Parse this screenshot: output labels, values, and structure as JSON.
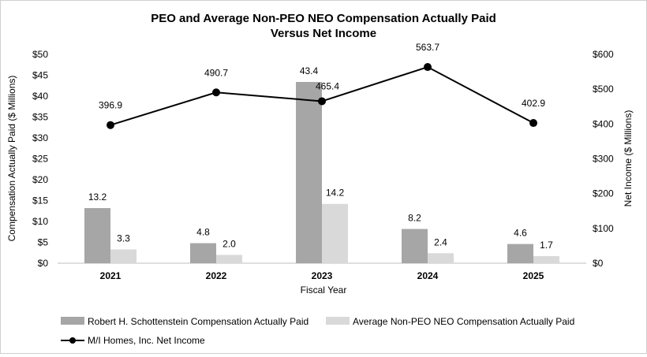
{
  "chart_data": {
    "type": "bar",
    "title": "PEO and Average Non-PEO NEO Compensation Actually Paid",
    "subtitle": "Versus Net Income",
    "xlabel": "Fiscal Year",
    "ylabel": "Compensation Actually Paid ($ Millions)",
    "y2label": "Net Income ($ Millions)",
    "categories": [
      "2021",
      "2022",
      "2023",
      "2024",
      "2025"
    ],
    "ylim": [
      0,
      50
    ],
    "y2lim": [
      0,
      600
    ],
    "yticks": [
      "$0",
      "$5",
      "$10",
      "$15",
      "$20",
      "$25",
      "$30",
      "$35",
      "$40",
      "$45",
      "$50"
    ],
    "y2ticks": [
      "$0",
      "$100",
      "$200",
      "$300",
      "$400",
      "$500",
      "$600"
    ],
    "grid": false,
    "legend_position": "bottom",
    "series": [
      {
        "name": "Robert H. Schottenstein Compensation Actually Paid",
        "type": "bar",
        "axis": "left",
        "color": "#a6a6a6",
        "values": [
          13.2,
          4.8,
          43.4,
          8.2,
          4.6
        ],
        "labels": [
          "13.2",
          "4.8",
          "43.4",
          "8.2",
          "4.6"
        ]
      },
      {
        "name": "Average Non-PEO NEO Compensation Actually Paid",
        "type": "bar",
        "axis": "left",
        "color": "#d9d9d9",
        "values": [
          3.3,
          2.0,
          14.2,
          2.4,
          1.7
        ],
        "labels": [
          "3.3",
          "2.0",
          "14.2",
          "2.4",
          "1.7"
        ]
      },
      {
        "name": "M/I Homes, Inc. Net Income",
        "type": "line",
        "axis": "right",
        "color": "#000000",
        "values": [
          396.9,
          490.7,
          465.4,
          563.7,
          402.9
        ],
        "labels": [
          "396.9",
          "490.7",
          "465.4",
          "563.7",
          "402.9"
        ]
      }
    ]
  }
}
